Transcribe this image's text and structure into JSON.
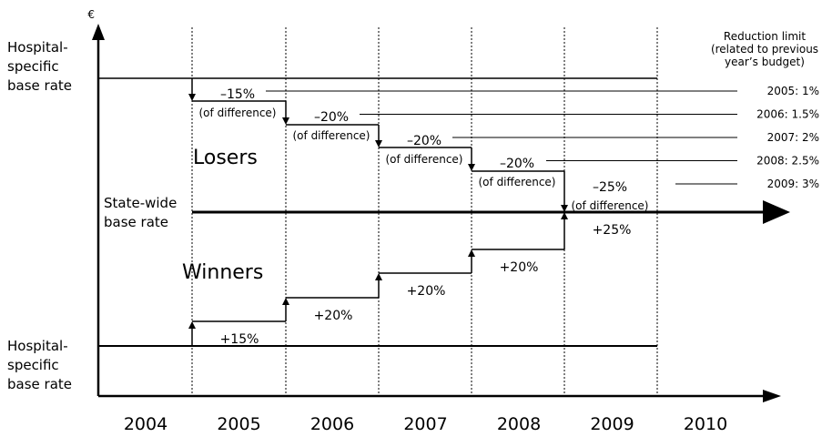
{
  "axis": {
    "y_unit": "€",
    "years": [
      "2004",
      "2005",
      "2006",
      "2007",
      "2008",
      "2009",
      "2010"
    ]
  },
  "top_label": [
    "Hospital-",
    "specific",
    "base rate"
  ],
  "bottom_label": [
    "Hospital-",
    "specific",
    "base rate"
  ],
  "state_label": [
    "State-wide",
    "base rate"
  ],
  "losers": {
    "label": "Losers",
    "steps": [
      {
        "change": "–15%",
        "note": "(of difference)"
      },
      {
        "change": "–20%",
        "note": "(of difference)"
      },
      {
        "change": "–20%",
        "note": "(of difference)"
      },
      {
        "change": "–20%",
        "note": "(of difference)"
      },
      {
        "change": "–25%",
        "note": "(of difference)"
      }
    ]
  },
  "winners": {
    "label": "Winners",
    "steps": [
      "+15%",
      "+20%",
      "+20%",
      "+20%",
      "+25%"
    ]
  },
  "reduction_limit": {
    "title": [
      "Reduction limit",
      "(related to previous",
      "year’s budget)"
    ],
    "items": [
      "2005: 1%",
      "2006: 1.5%",
      "2007: 2%",
      "2008: 2.5%",
      "2009: 3%"
    ]
  }
}
